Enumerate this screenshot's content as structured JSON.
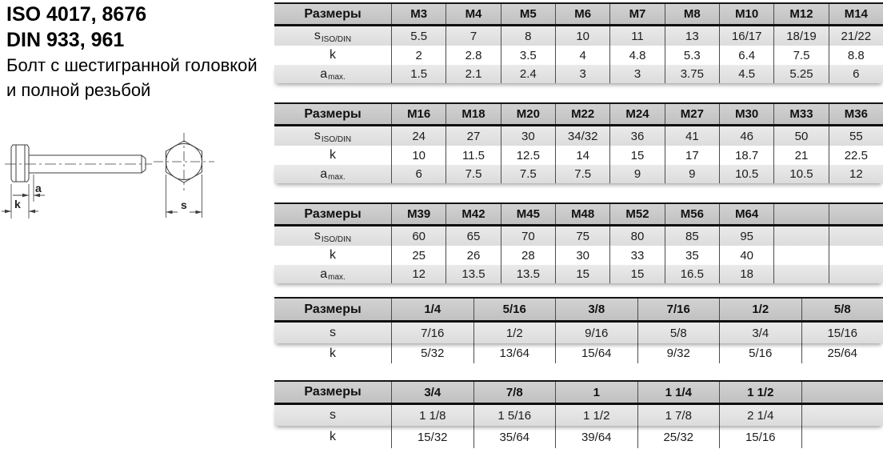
{
  "title": {
    "line1": "ISO 4017, 8676",
    "line2": "DIN 933, 961",
    "line3": "Болт с шестигранной головкой",
    "line4": "и полной резьбой"
  },
  "drawing": {
    "dim_a": "a",
    "dim_k": "k",
    "dim_s": "s"
  },
  "tables": [
    {
      "name": "metric-m3-m14",
      "header_label": "Размеры",
      "columns": [
        "M3",
        "M4",
        "M5",
        "M6",
        "M7",
        "M8",
        "M10",
        "M12",
        "M14"
      ],
      "rows": [
        {
          "label": "s",
          "sub": "ISO/DIN",
          "values": [
            "5.5",
            "7",
            "8",
            "10",
            "11",
            "13",
            "16/17",
            "18/19",
            "21/22"
          ]
        },
        {
          "label": "k",
          "sub": "",
          "values": [
            "2",
            "2.8",
            "3.5",
            "4",
            "4.8",
            "5.3",
            "6.4",
            "7.5",
            "8.8"
          ]
        },
        {
          "label": "a",
          "sub": "max.",
          "values": [
            "1.5",
            "2.1",
            "2.4",
            "3",
            "3",
            "3.75",
            "4.5",
            "5.25",
            "6"
          ]
        }
      ]
    },
    {
      "name": "metric-m16-m36",
      "header_label": "Размеры",
      "columns": [
        "M16",
        "M18",
        "M20",
        "M22",
        "M24",
        "M27",
        "M30",
        "M33",
        "M36"
      ],
      "rows": [
        {
          "label": "s",
          "sub": "ISO/DIN",
          "values": [
            "24",
            "27",
            "30",
            "34/32",
            "36",
            "41",
            "46",
            "50",
            "55"
          ]
        },
        {
          "label": "k",
          "sub": "",
          "values": [
            "10",
            "11.5",
            "12.5",
            "14",
            "15",
            "17",
            "18.7",
            "21",
            "22.5"
          ]
        },
        {
          "label": "a",
          "sub": "max.",
          "values": [
            "6",
            "7.5",
            "7.5",
            "7.5",
            "9",
            "9",
            "10.5",
            "10.5",
            "12"
          ]
        }
      ]
    },
    {
      "name": "metric-m39-m64",
      "header_label": "Размеры",
      "columns": [
        "M39",
        "M42",
        "M45",
        "M48",
        "M52",
        "M56",
        "M64",
        "",
        ""
      ],
      "rows": [
        {
          "label": "s",
          "sub": "ISO/DIN",
          "values": [
            "60",
            "65",
            "70",
            "75",
            "80",
            "85",
            "95",
            "",
            ""
          ]
        },
        {
          "label": "k",
          "sub": "",
          "values": [
            "25",
            "26",
            "28",
            "30",
            "33",
            "35",
            "40",
            "",
            ""
          ]
        },
        {
          "label": "a",
          "sub": "max.",
          "values": [
            "12",
            "13.5",
            "13.5",
            "15",
            "15",
            "16.5",
            "18",
            "",
            ""
          ]
        }
      ]
    },
    {
      "name": "imperial-quarter-fiveeighths",
      "header_label": "Размеры",
      "columns": [
        "1/4",
        "5/16",
        "3/8",
        "7/16",
        "1/2",
        "5/8"
      ],
      "rows": [
        {
          "label": "s",
          "sub": "",
          "values": [
            "7/16",
            "1/2",
            "9/16",
            "5/8",
            "3/4",
            "15/16"
          ]
        },
        {
          "label": "k",
          "sub": "",
          "values": [
            "5/32",
            "13/64",
            "15/64",
            "9/32",
            "5/16",
            "25/64"
          ]
        }
      ]
    },
    {
      "name": "imperial-threequarter-oneandhalf",
      "header_label": "Размеры",
      "columns": [
        "3/4",
        "7/8",
        "1",
        "1 1/4",
        "1 1/2",
        ""
      ],
      "rows": [
        {
          "label": "s",
          "sub": "",
          "values": [
            "1 1/8",
            "1 5/16",
            "1 1/2",
            "1 7/8",
            "2 1/4",
            ""
          ]
        },
        {
          "label": "k",
          "sub": "",
          "values": [
            "15/32",
            "35/64",
            "39/64",
            "25/32",
            "15/16",
            ""
          ]
        }
      ]
    }
  ]
}
